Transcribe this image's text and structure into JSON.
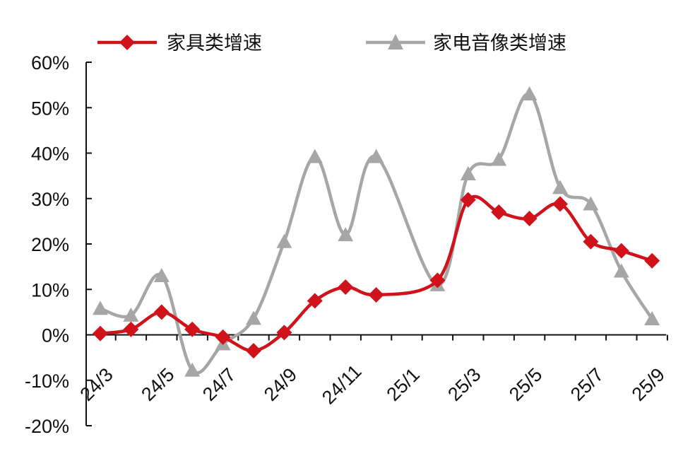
{
  "chart_data": {
    "type": "line",
    "title": "",
    "xlabel": "",
    "ylabel": "",
    "x": [
      "24/3",
      "24/4",
      "24/5",
      "24/6",
      "24/7",
      "24/8",
      "24/9",
      "24/10",
      "24/11",
      "24/12",
      "25/1",
      "25/2",
      "25/3",
      "25/4",
      "25/5",
      "25/6",
      "25/7",
      "25/8",
      "25/9"
    ],
    "x_tick_labels": [
      "24/3",
      "24/5",
      "24/7",
      "24/9",
      "24/11",
      "25/1",
      "25/3",
      "25/5",
      "25/7",
      "25/9"
    ],
    "y_tick_labels": [
      "60%",
      "50%",
      "40%",
      "30%",
      "20%",
      "10%",
      "0%",
      "-10%",
      "-20%"
    ],
    "ylim": [
      -20,
      60
    ],
    "grid": false,
    "legend_position": "top",
    "series": [
      {
        "name": "家具类增速",
        "color": "#d0121b",
        "marker": "diamond",
        "x": [
          0,
          1,
          2,
          3,
          4,
          5,
          6,
          7,
          8,
          9,
          11,
          12,
          13,
          14,
          15,
          16,
          17,
          18
        ],
        "values": [
          0.3,
          1.2,
          5.0,
          1.2,
          -0.5,
          -3.5,
          0.5,
          7.5,
          10.5,
          8.8,
          12.0,
          29.7,
          27.0,
          25.6,
          28.8,
          20.5,
          18.5,
          16.3
        ]
      },
      {
        "name": "家电音像类增速",
        "color": "#a6a6a6",
        "marker": "triangle",
        "x": [
          0,
          1,
          2,
          3,
          4,
          5,
          6,
          7,
          8,
          9,
          11,
          12,
          13,
          14,
          15,
          16,
          17,
          18
        ],
        "values": [
          5.8,
          4.3,
          13.0,
          -7.8,
          -2.0,
          3.6,
          20.5,
          39.2,
          22.0,
          39.2,
          11.0,
          35.4,
          38.6,
          53.0,
          32.4,
          28.8,
          14.0,
          3.5
        ]
      }
    ]
  }
}
